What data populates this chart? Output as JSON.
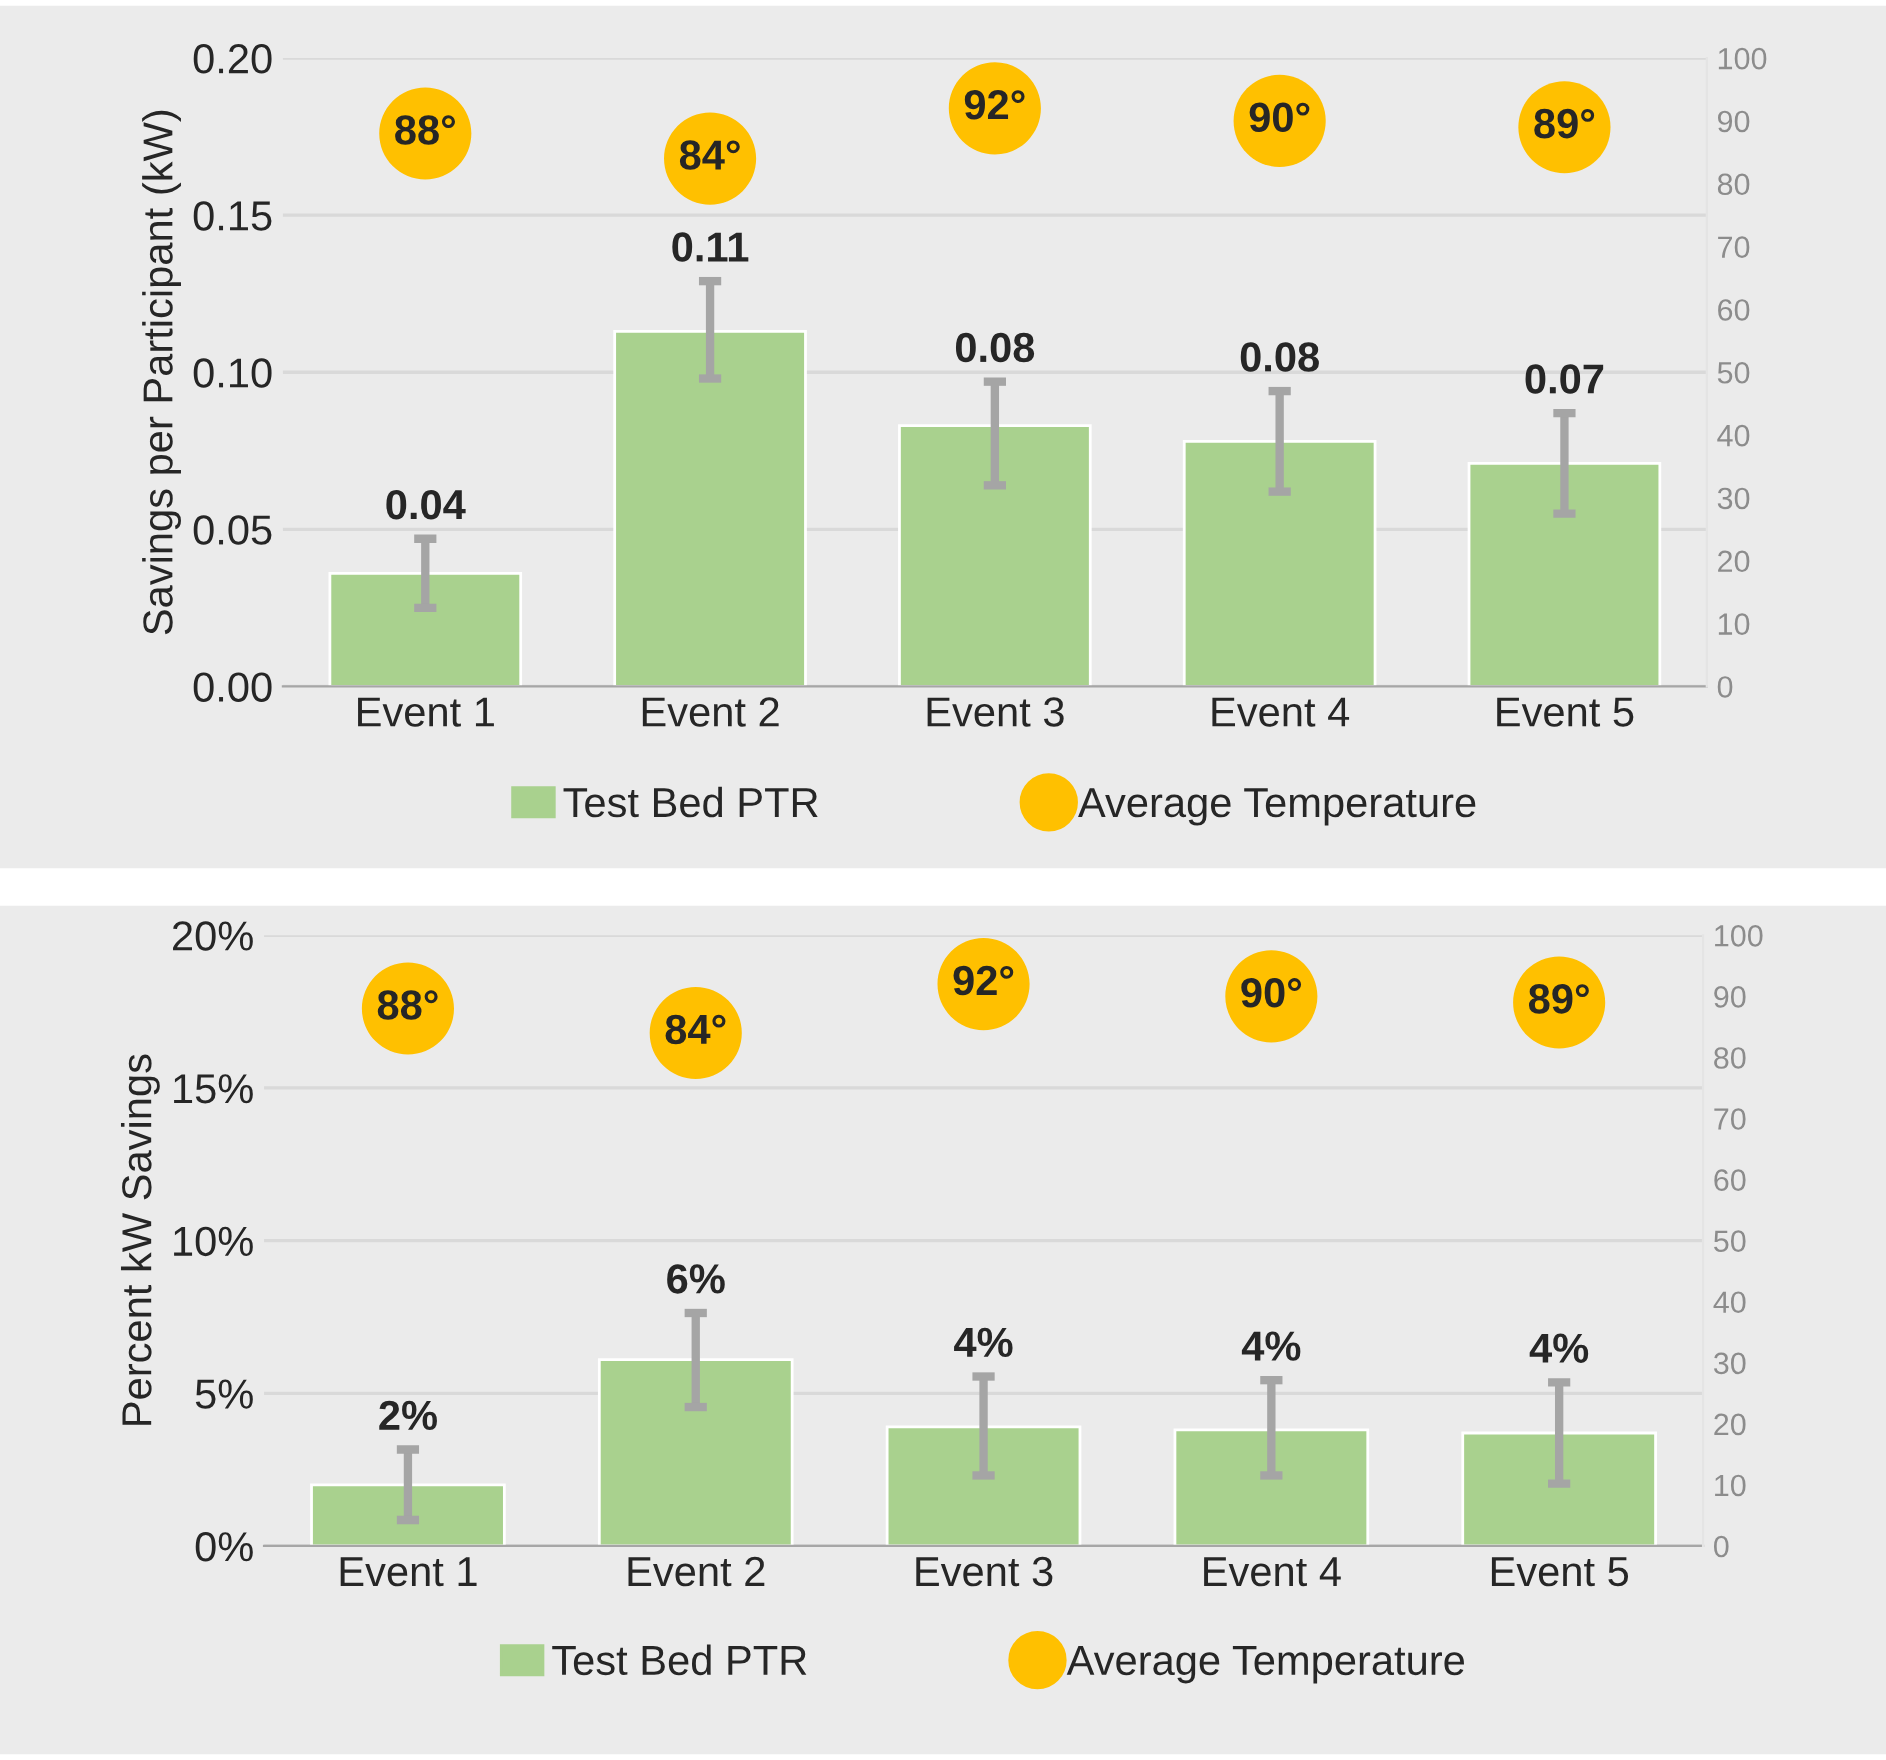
{
  "chart_data": [
    {
      "type": "bar",
      "categories": [
        "Event 1",
        "Event 2",
        "Event 3",
        "Event 4",
        "Event 5"
      ],
      "ylabel": "Savings per Participant (kW)",
      "ylim": [
        0,
        0.2
      ],
      "yticks": [
        {
          "value": 0,
          "label": "0.00"
        },
        {
          "value": 0.05,
          "label": "0.05"
        },
        {
          "value": 0.1,
          "label": "0.10"
        },
        {
          "value": 0.15,
          "label": "0.15"
        },
        {
          "value": 0.2,
          "label": "0.20"
        }
      ],
      "y2lim": [
        0,
        100
      ],
      "y2ticks": [
        0,
        10,
        20,
        30,
        40,
        50,
        60,
        70,
        80,
        90,
        100
      ],
      "grid": "y",
      "legend": "bottom",
      "series": [
        {
          "name": "Test Bed PTR",
          "color": "#a9d18e",
          "values": [
            0.036,
            0.113,
            0.083,
            0.078,
            0.071
          ],
          "errors": [
            [
              0.025,
              0.047
            ],
            [
              0.098,
              0.129
            ],
            [
              0.064,
              0.097
            ],
            [
              0.062,
              0.094
            ],
            [
              0.055,
              0.087
            ]
          ],
          "value_labels": [
            "0.04",
            "0.11",
            "0.08",
            "0.08",
            "0.07"
          ]
        },
        {
          "name": "Average Temperature",
          "type": "scatter",
          "axis": "y2",
          "marker": "circle",
          "color": "#ffc000",
          "values": [
            88,
            84,
            92,
            90,
            89
          ],
          "value_labels": [
            "88°",
            "84°",
            "92°",
            "90°",
            "89°"
          ]
        }
      ]
    },
    {
      "type": "bar",
      "categories": [
        "Event 1",
        "Event 2",
        "Event 3",
        "Event 4",
        "Event 5"
      ],
      "ylabel": "Percent kW Savings",
      "ylim": [
        0,
        20
      ],
      "yticks": [
        {
          "value": 0,
          "label": "0%"
        },
        {
          "value": 5,
          "label": "5%"
        },
        {
          "value": 10,
          "label": "10%"
        },
        {
          "value": 15,
          "label": "15%"
        },
        {
          "value": 20,
          "label": "20%"
        }
      ],
      "y2lim": [
        0,
        100
      ],
      "y2ticks": [
        0,
        10,
        20,
        30,
        40,
        50,
        60,
        70,
        80,
        90,
        100
      ],
      "grid": "y",
      "legend": "bottom",
      "series": [
        {
          "name": "Test Bed PTR",
          "color": "#a9d18e",
          "values": [
            2.0,
            6.1,
            3.9,
            3.8,
            3.7
          ],
          "errors": [
            [
              0.85,
              3.16
            ],
            [
              4.55,
              7.63
            ],
            [
              2.31,
              5.55
            ],
            [
              2.31,
              5.43
            ],
            [
              2.04,
              5.36
            ]
          ],
          "value_labels": [
            "2%",
            "6%",
            "4%",
            "4%",
            "4%"
          ]
        },
        {
          "name": "Average Temperature",
          "type": "scatter",
          "axis": "y2",
          "marker": "circle",
          "color": "#ffc000",
          "values": [
            88,
            84,
            92,
            90,
            89
          ],
          "value_labels": [
            "88°",
            "84°",
            "92°",
            "90°",
            "89°"
          ]
        }
      ]
    }
  ]
}
